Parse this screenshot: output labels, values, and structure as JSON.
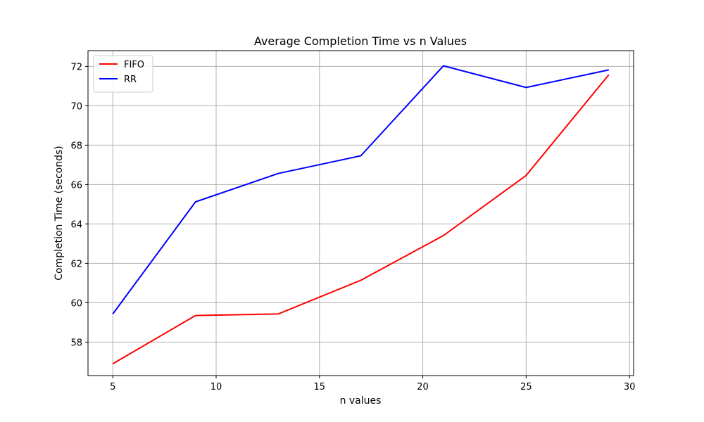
{
  "chart_data": {
    "type": "line",
    "title": "Average Completion Time vs n Values",
    "xlabel": "n values",
    "ylabel": "Completion Time (seconds)",
    "xlim": [
      3.8,
      30.2
    ],
    "ylim": [
      56.3,
      72.8
    ],
    "xticks": [
      5,
      10,
      15,
      20,
      25,
      30
    ],
    "yticks": [
      58,
      60,
      62,
      64,
      66,
      68,
      70,
      72
    ],
    "x": [
      5,
      9,
      13,
      17,
      21,
      25,
      29
    ],
    "grid": true,
    "legend_position": "top-left",
    "series": [
      {
        "name": "FIFO",
        "color": "#ff0000",
        "values": [
          56.9,
          59.35,
          59.43,
          61.14,
          63.41,
          66.46,
          71.58
        ]
      },
      {
        "name": "RR",
        "color": "#0000ff",
        "values": [
          59.43,
          65.12,
          66.56,
          67.46,
          72.03,
          70.93,
          71.82
        ]
      }
    ]
  }
}
